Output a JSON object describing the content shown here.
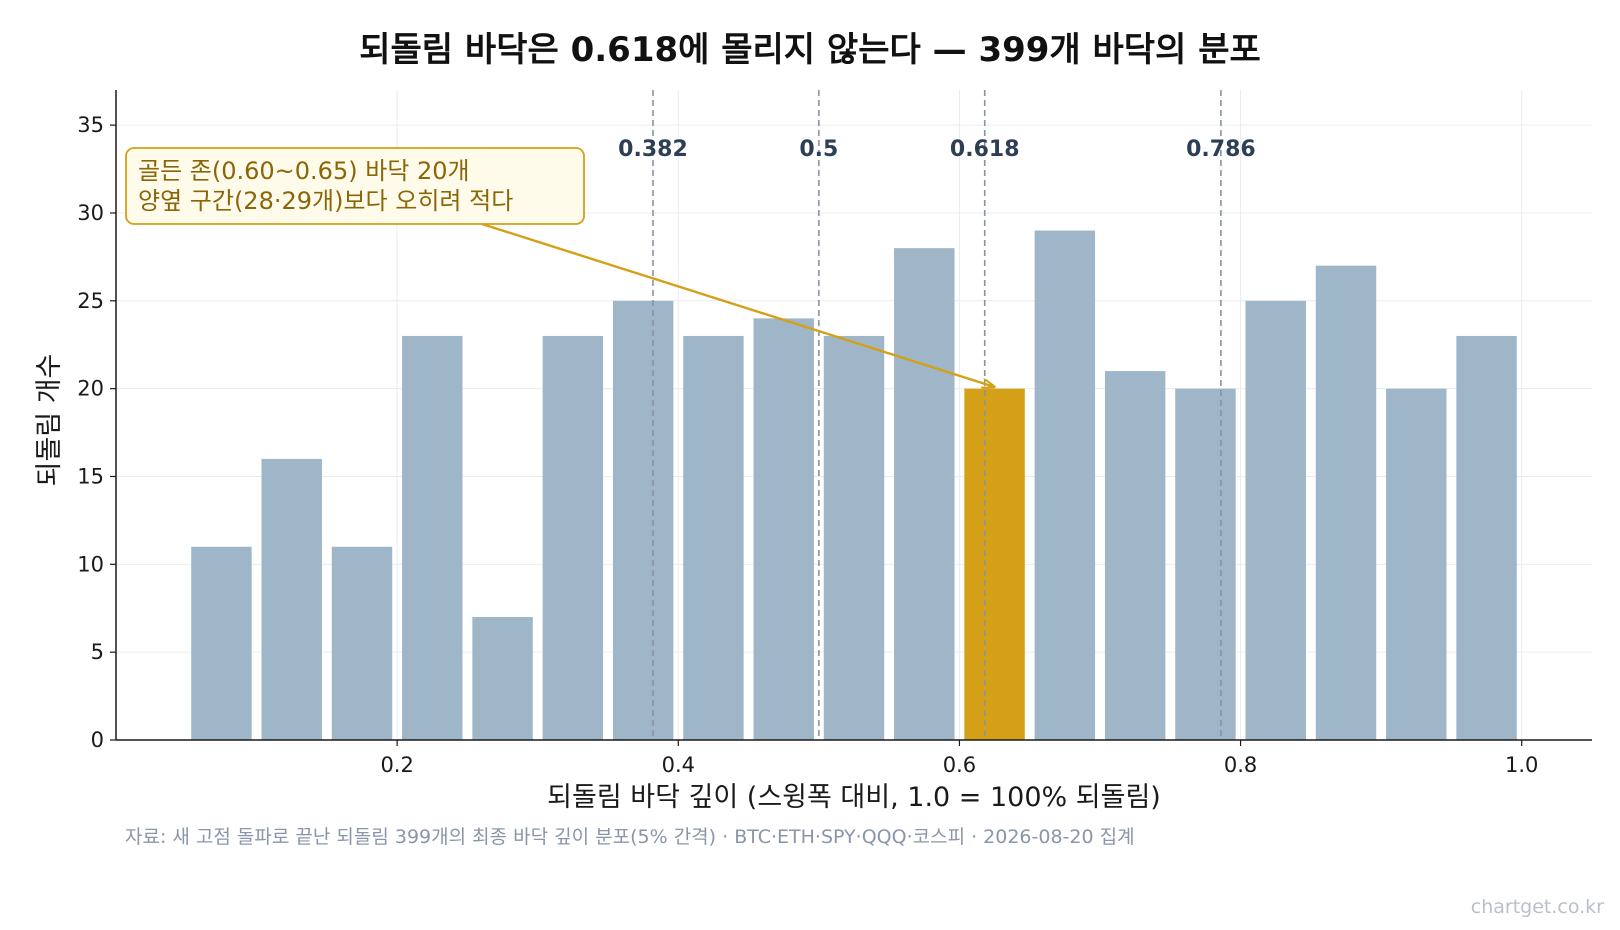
{
  "title": "되돌림 바닥은 0.618에 몰리지 않는다 — 399개 바닥의 분포",
  "source": "자료: 새 고점 돌파로 끝난 되돌림 399개의 최종 바닥 깊이 분포(5% 간격) · BTC·ETH·SPY·QQQ·코스피 · 2026-08-20 집계",
  "watermark": "chartget.co.kr",
  "chart_data": {
    "type": "bar",
    "title": "되돌림 바닥은 0.618에 몰리지 않는다 — 399개 바닥의 분포",
    "xlabel": "되돌림 바닥 깊이 (스윙폭 대비, 1.0 = 100% 되돌림)",
    "ylabel": "되돌림 개수",
    "bin_width": 0.05,
    "x": [
      0.075,
      0.125,
      0.175,
      0.225,
      0.275,
      0.325,
      0.375,
      0.425,
      0.475,
      0.525,
      0.575,
      0.625,
      0.675,
      0.725,
      0.775,
      0.825,
      0.875,
      0.925,
      0.975
    ],
    "values": [
      11,
      16,
      11,
      23,
      7,
      23,
      25,
      23,
      24,
      23,
      28,
      20,
      29,
      21,
      20,
      25,
      27,
      20,
      23
    ],
    "highlight_index": 11,
    "xlim": [
      0.0,
      1.05
    ],
    "ylim": [
      0,
      37
    ],
    "xticks": [
      0.2,
      0.4,
      0.6,
      0.8,
      1.0
    ],
    "xtick_labels": [
      "0.2",
      "0.4",
      "0.6",
      "0.8",
      "1.0"
    ],
    "yticks": [
      0,
      5,
      10,
      15,
      20,
      25,
      30,
      35
    ],
    "ytick_labels": [
      "0",
      "5",
      "10",
      "15",
      "20",
      "25",
      "30",
      "35"
    ],
    "grid": true,
    "reference_lines": [
      {
        "x": 0.382,
        "label": "0.382"
      },
      {
        "x": 0.5,
        "label": "0.5"
      },
      {
        "x": 0.618,
        "label": "0.618"
      },
      {
        "x": 0.786,
        "label": "0.786"
      }
    ],
    "annotation": {
      "lines": [
        "골든 존(0.60~0.65) 바닥 20개",
        "양옆 구간(28·29개)보다 오히려 적다"
      ],
      "target_x": 0.625,
      "target_y": 20
    },
    "colors": {
      "bar": "#9fb6c8",
      "highlight": "#d4a017",
      "reference_line": "#8a93a0",
      "annotation": "#d4a017",
      "annotation_text": "#8a6608",
      "annotation_bg": "#fffbeb"
    }
  }
}
